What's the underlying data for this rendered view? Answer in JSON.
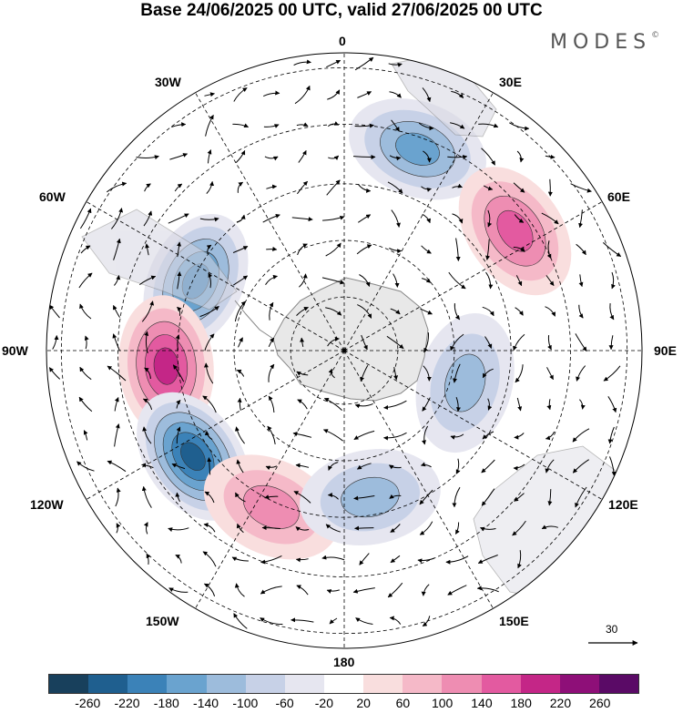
{
  "title": "Base 24/06/2025 00 UTC, valid 27/06/2025 00 UTC",
  "logo": "MODES",
  "logo_mark": "©",
  "longitude_labels": {
    "lon_0": "0",
    "lon_30e": "30E",
    "lon_60e": "60E",
    "lon_90e": "90E",
    "lon_120e": "120E",
    "lon_150e": "150E",
    "lon_180": "180",
    "lon_150w": "150W",
    "lon_120w": "120W",
    "lon_90w": "90W",
    "lon_60w": "60W",
    "lon_30w": "30W"
  },
  "reference_vector": "30",
  "colorbar": {
    "colors": [
      "#18405c",
      "#1f5f8f",
      "#3b82b8",
      "#6aa3cf",
      "#9dbcdc",
      "#c7d1e7",
      "#e6e6f0",
      "#ffffff",
      "#f9dede",
      "#f5b9c8",
      "#ee8db2",
      "#e35aa0",
      "#c42687",
      "#8e0f78",
      "#5a0a66"
    ],
    "tick_labels": [
      "-260",
      "-220",
      "-180",
      "-140",
      "-100",
      "-60",
      "-20",
      "20",
      "60",
      "100",
      "140",
      "180",
      "220",
      "260"
    ]
  },
  "map": {
    "projection": "south-polar-stereographic",
    "blobs": [
      {
        "type": "negative",
        "level": 4,
        "lon": -65,
        "r": 0.55
      },
      {
        "type": "positive",
        "level": 4,
        "lon": -95,
        "r": 0.6
      },
      {
        "type": "negative",
        "level": 5,
        "lon": -125,
        "r": 0.62
      },
      {
        "type": "positive",
        "level": 2,
        "lon": -155,
        "r": 0.58
      },
      {
        "type": "negative",
        "level": 2,
        "lon": 170,
        "r": 0.5
      },
      {
        "type": "negative",
        "level": 3,
        "lon": 20,
        "r": 0.72
      },
      {
        "type": "positive",
        "level": 3,
        "lon": 55,
        "r": 0.7
      },
      {
        "type": "negative",
        "level": 2,
        "lon": 105,
        "r": 0.42
      }
    ]
  }
}
